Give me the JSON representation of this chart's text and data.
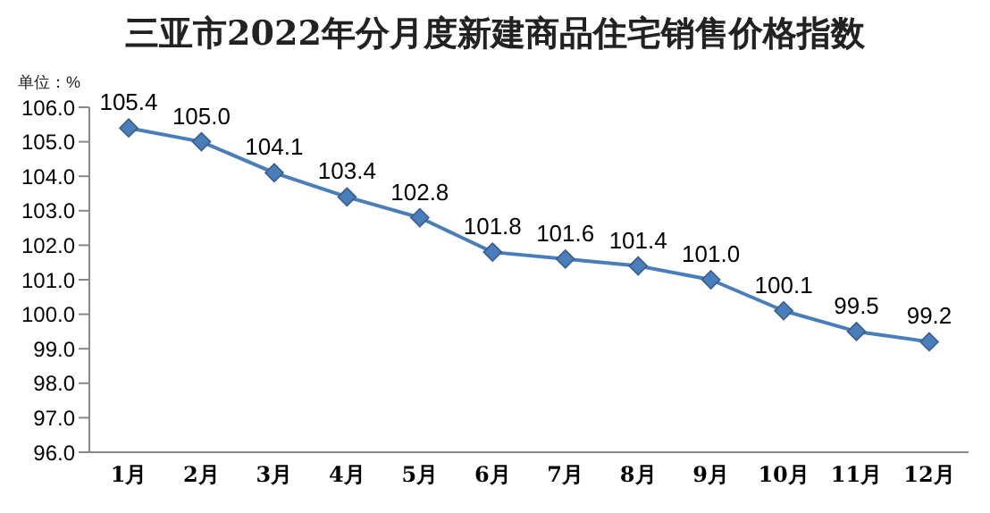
{
  "chart_data": {
    "type": "line",
    "title": "三亚市2022年分月度新建商品住宅销售价格指数",
    "ylabel": "单位：%",
    "categories": [
      "1月",
      "2月",
      "3月",
      "4月",
      "5月",
      "6月",
      "7月",
      "8月",
      "9月",
      "10月",
      "11月",
      "12月"
    ],
    "values": [
      105.4,
      105.0,
      104.1,
      103.4,
      102.8,
      101.8,
      101.6,
      101.4,
      101.0,
      100.1,
      99.5,
      99.2
    ],
    "value_labels": [
      "105.4",
      "105.0",
      "104.1",
      "103.4",
      "102.8",
      "101.8",
      "101.6",
      "101.4",
      "101.0",
      "100.1",
      "99.5",
      "99.2"
    ],
    "color": "#4a7ebb",
    "marker": "diamond",
    "line_style": "solid",
    "ylim": [
      96,
      106
    ],
    "yticks": [
      {
        "value": 96,
        "label": "96.0"
      },
      {
        "value": 97,
        "label": "97.0"
      },
      {
        "value": 98,
        "label": "98.0"
      },
      {
        "value": 99,
        "label": "99.0"
      },
      {
        "value": 100,
        "label": "100.0"
      },
      {
        "value": 101,
        "label": "101.0"
      },
      {
        "value": 102,
        "label": "102.0"
      },
      {
        "value": 103,
        "label": "103.0"
      },
      {
        "value": 104,
        "label": "104.0"
      },
      {
        "value": 105,
        "label": "105.0"
      },
      {
        "value": 106,
        "label": "106.0"
      }
    ],
    "grid": false,
    "legend": false
  }
}
